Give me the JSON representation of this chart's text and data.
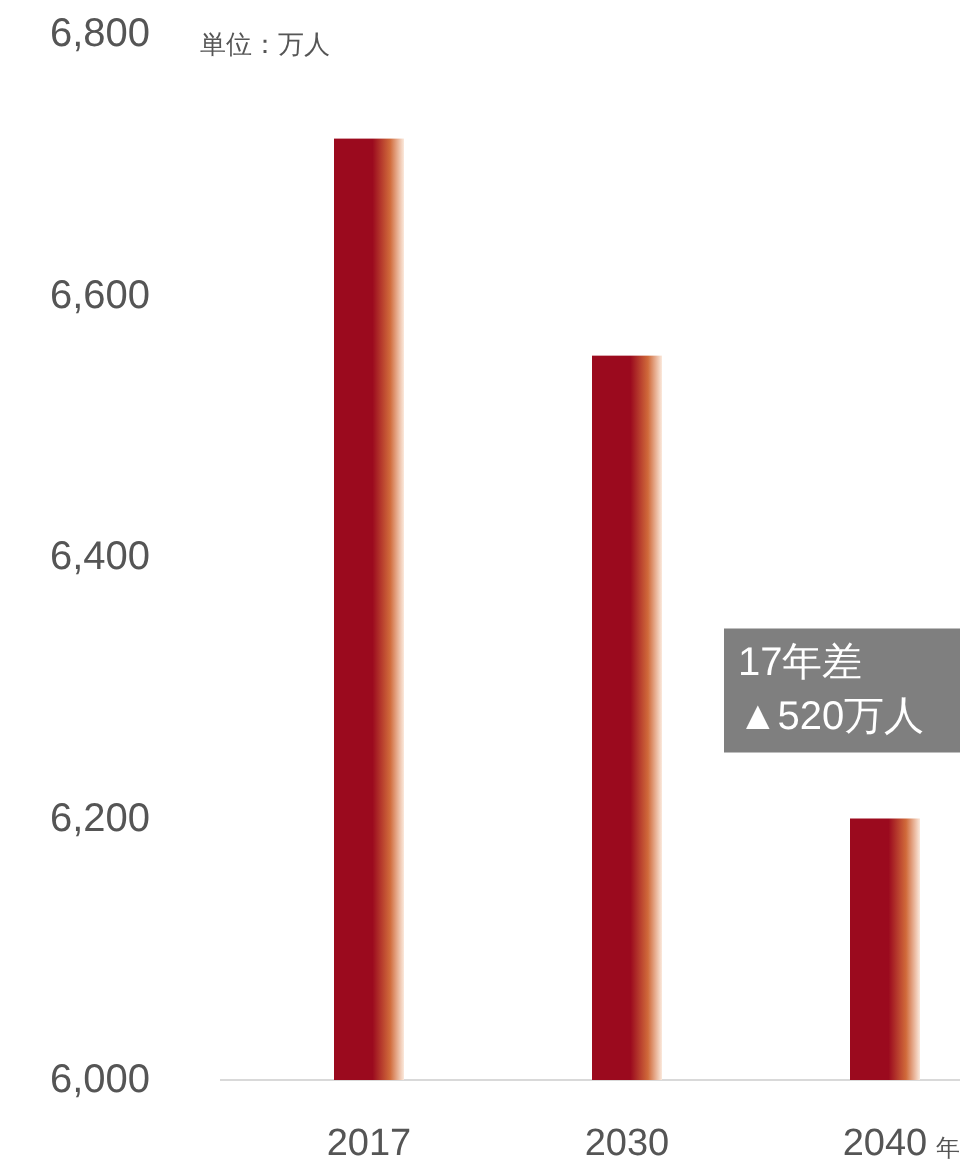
{
  "chart_data": {
    "type": "bar",
    "categories": [
      "2017",
      "2030",
      "2040"
    ],
    "values": [
      6720,
      6554,
      6200
    ],
    "color": "#9b0a1e",
    "ylim": [
      6000,
      6800
    ],
    "yticks": [
      {
        "value": 6000,
        "label": "6,000"
      },
      {
        "value": 6200,
        "label": "6,200"
      },
      {
        "value": 6400,
        "label": "6,400"
      },
      {
        "value": 6600,
        "label": "6,600"
      },
      {
        "value": 6800,
        "label": "6,800"
      }
    ],
    "xlabel": "年",
    "grid": false,
    "annotations": [
      "単位：万人",
      {
        "text": "17年差\n▲520万人",
        "x": "2040",
        "y": 6200
      }
    ]
  }
}
